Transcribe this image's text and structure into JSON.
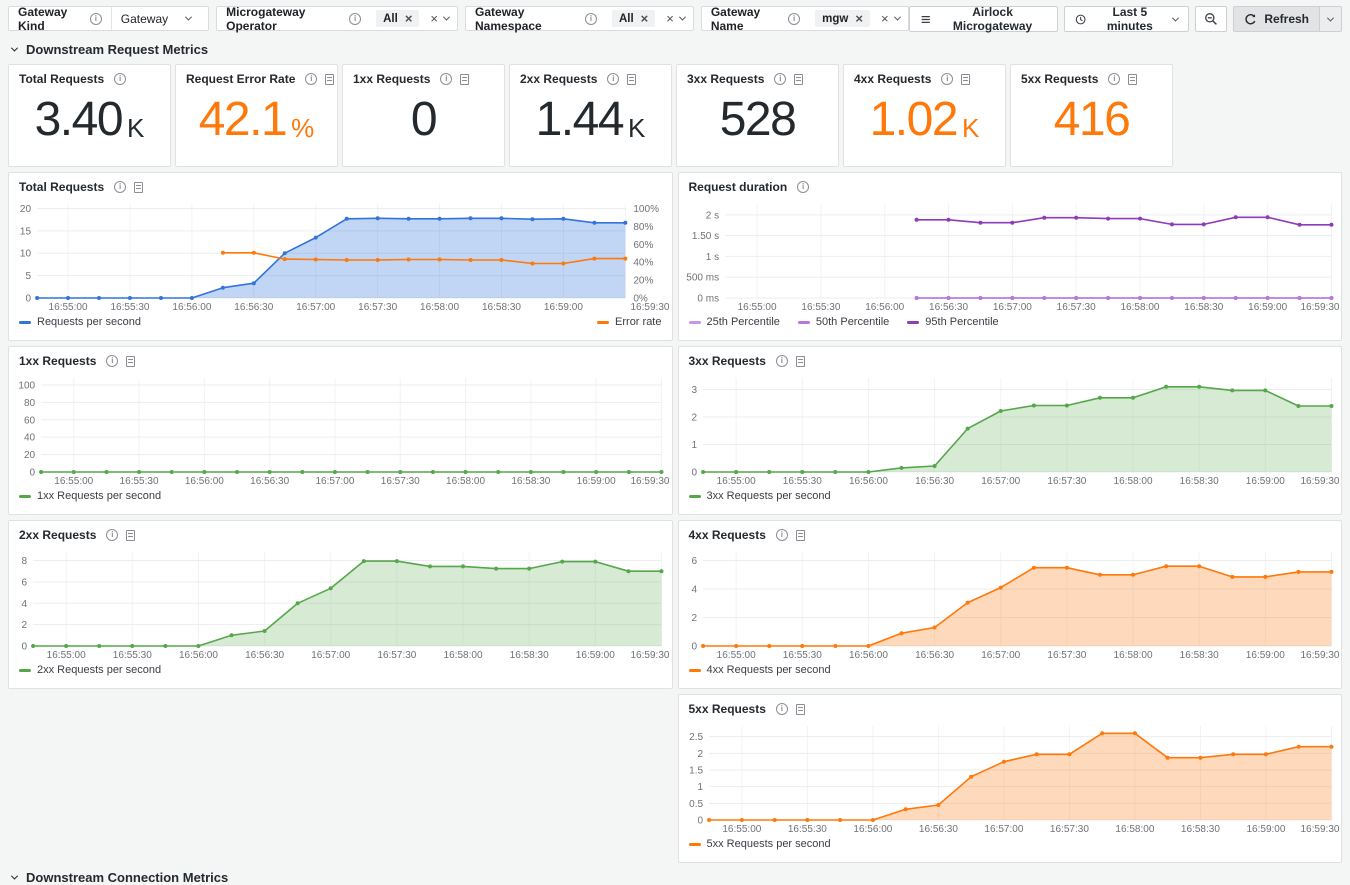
{
  "icons": {
    "close": "×"
  },
  "filters": {
    "gateway_kind": {
      "label": "Gateway Kind",
      "value": "Gateway"
    },
    "operator": {
      "label": "Microgateway Operator",
      "chip": "All"
    },
    "namespace": {
      "label": "Gateway Namespace",
      "chip": "All"
    },
    "gateway_name": {
      "label": "Gateway Name",
      "chip": "mgw"
    }
  },
  "toolbar": {
    "app_button": "Airlock Microgateway",
    "time_range": "Last 5 minutes",
    "refresh_label": "Refresh"
  },
  "section": {
    "title": "Downstream Request Metrics"
  },
  "section_next": {
    "title": "Downstream Connection Metrics"
  },
  "colors": {
    "value_dark": "#24292E",
    "value_orange": "#FF780A",
    "blue": "#3274D9",
    "green": "#56A64B",
    "orange": "#FF780A",
    "purple_25": "#CA95E5",
    "purple_50": "#B877D9",
    "purple_95": "#8F3BB8"
  },
  "stats": [
    {
      "title": "Total Requests",
      "icons": [
        "info"
      ],
      "value": "3.40",
      "suffix": "K",
      "color": "#24292E"
    },
    {
      "title": "Request Error Rate",
      "icons": [
        "info",
        "panel-links"
      ],
      "value": "42.1",
      "suffix": "%",
      "color": "#FF780A"
    },
    {
      "title": "1xx Requests",
      "icons": [
        "info",
        "panel-links"
      ],
      "value": "0",
      "suffix": "",
      "color": "#24292E"
    },
    {
      "title": "2xx Requests",
      "icons": [
        "info",
        "panel-links"
      ],
      "value": "1.44",
      "suffix": "K",
      "color": "#24292E"
    },
    {
      "title": "3xx Requests",
      "icons": [
        "info",
        "panel-links"
      ],
      "value": "528",
      "suffix": "",
      "color": "#24292E"
    },
    {
      "title": "4xx Requests",
      "icons": [
        "info",
        "panel-links"
      ],
      "value": "1.02",
      "suffix": "K",
      "color": "#FF780A"
    },
    {
      "title": "5xx Requests",
      "icons": [
        "info",
        "panel-links"
      ],
      "value": "416",
      "suffix": "",
      "color": "#FF780A"
    }
  ],
  "time_axis": [
    "16:55:00",
    "16:55:30",
    "16:56:00",
    "16:56:30",
    "16:57:00",
    "16:57:30",
    "16:58:00",
    "16:58:30",
    "16:59:00",
    "16:59:30"
  ],
  "x_start": "16:54:45",
  "x_step_seconds": 15,
  "chart_data": [
    {
      "id": "total-requests",
      "title": "Total Requests",
      "type": "area+line",
      "icons": [
        "info",
        "panel-links"
      ],
      "legend_split": true,
      "pad_l": 28,
      "y_left": {
        "labels": [
          "0",
          "5",
          "10",
          "15",
          "20"
        ],
        "tick_max": 20,
        "ymax": 21
      },
      "y_right": {
        "labels": [
          "0%",
          "20%",
          "40%",
          "60%",
          "80%",
          "100%"
        ],
        "tick_max": 100,
        "ymax": 105
      },
      "series": [
        {
          "name": "Requests per second",
          "axis": "left",
          "color": "#3274D9",
          "fill": "rgba(50,116,217,0.30)",
          "values": [
            0,
            0,
            0,
            0,
            0,
            0,
            2.3,
            3.3,
            10,
            13.5,
            17.7,
            17.8,
            17.7,
            17.7,
            17.8,
            17.8,
            17.6,
            17.7,
            16.8,
            16.8
          ]
        },
        {
          "name": "Error rate",
          "axis": "right",
          "color": "#FF780A",
          "fill": null,
          "values": [
            null,
            null,
            null,
            null,
            null,
            null,
            50.5,
            50.5,
            43.5,
            43,
            42.5,
            42.5,
            43,
            43,
            42.5,
            42.5,
            38.5,
            38.5,
            44,
            44
          ]
        }
      ]
    },
    {
      "id": "request-duration",
      "title": "Request duration",
      "type": "line",
      "icons": [
        "info"
      ],
      "pad_l": 46,
      "y_left": {
        "labels": [
          "0 ms",
          "500 ms",
          "1 s",
          "1.50 s",
          "2 s"
        ],
        "tick_max": 2,
        "ymax": 2.26
      },
      "series": [
        {
          "name": "25th Percentile",
          "axis": "left",
          "color": "#CA95E5",
          "fill": null,
          "values": [
            null,
            null,
            null,
            null,
            null,
            null,
            0,
            0,
            0,
            0,
            0,
            0,
            0,
            0,
            0,
            0,
            0,
            0,
            0,
            0
          ]
        },
        {
          "name": "50th Percentile",
          "axis": "left",
          "color": "#B877D9",
          "fill": null,
          "values": [
            null,
            null,
            null,
            null,
            null,
            null,
            0,
            0,
            0,
            0,
            0,
            0,
            0,
            0,
            0,
            0,
            0,
            0,
            0,
            0
          ]
        },
        {
          "name": "95th Percentile",
          "axis": "left",
          "color": "#8F3BB8",
          "fill": null,
          "values": [
            null,
            null,
            null,
            null,
            null,
            null,
            1.88,
            1.88,
            1.81,
            1.81,
            1.93,
            1.93,
            1.91,
            1.91,
            1.77,
            1.77,
            1.94,
            1.94,
            1.76,
            1.76
          ]
        }
      ]
    },
    {
      "id": "1xx-requests",
      "title": "1xx Requests",
      "type": "line",
      "icons": [
        "info",
        "panel-links"
      ],
      "pad_l": 32,
      "y_left": {
        "labels": [
          "0",
          "20",
          "40",
          "60",
          "80",
          "100"
        ],
        "tick_max": 100,
        "ymax": 108
      },
      "series": [
        {
          "name": "1xx Requests per second",
          "axis": "left",
          "color": "#56A64B",
          "fill": null,
          "values": [
            0,
            0,
            0,
            0,
            0,
            0,
            0,
            0,
            0,
            0,
            0,
            0,
            0,
            0,
            0,
            0,
            0,
            0,
            0,
            0
          ]
        }
      ]
    },
    {
      "id": "3xx-requests",
      "title": "3xx Requests",
      "type": "area",
      "icons": [
        "info",
        "panel-links"
      ],
      "pad_l": 24,
      "y_left": {
        "labels": [
          "0",
          "1",
          "2",
          "3"
        ],
        "tick_max": 3,
        "ymax": 3.42
      },
      "series": [
        {
          "name": "3xx Requests per second",
          "axis": "left",
          "color": "#56A64B",
          "fill": "rgba(86,166,75,0.24)",
          "values": [
            0,
            0,
            0,
            0,
            0,
            0,
            0.15,
            0.22,
            1.58,
            2.22,
            2.42,
            2.42,
            2.7,
            2.7,
            3.1,
            3.1,
            2.97,
            2.97,
            2.4,
            2.4
          ]
        }
      ]
    },
    {
      "id": "2xx-requests",
      "title": "2xx Requests",
      "type": "area",
      "icons": [
        "info",
        "panel-links"
      ],
      "pad_l": 24,
      "y_left": {
        "labels": [
          "0",
          "2",
          "4",
          "6",
          "8"
        ],
        "tick_max": 8,
        "ymax": 8.8
      },
      "series": [
        {
          "name": "2xx Requests per second",
          "axis": "left",
          "color": "#56A64B",
          "fill": "rgba(86,166,75,0.24)",
          "values": [
            0,
            0,
            0,
            0,
            0,
            0,
            1.0,
            1.4,
            4.0,
            5.4,
            7.95,
            7.95,
            7.45,
            7.45,
            7.25,
            7.25,
            7.9,
            7.9,
            7.0,
            7.0
          ]
        }
      ]
    },
    {
      "id": "4xx-requests",
      "title": "4xx Requests",
      "type": "area",
      "icons": [
        "info",
        "panel-links"
      ],
      "pad_l": 24,
      "y_left": {
        "labels": [
          "0",
          "2",
          "4",
          "6"
        ],
        "tick_max": 6,
        "ymax": 6.6
      },
      "series": [
        {
          "name": "4xx Requests per second",
          "axis": "left",
          "color": "#FF780A",
          "fill": "rgba(255,120,10,0.28)",
          "values": [
            0,
            0,
            0,
            0,
            0,
            0,
            0.9,
            1.3,
            3.05,
            4.1,
            5.5,
            5.5,
            5.0,
            5.0,
            5.6,
            5.6,
            4.85,
            4.85,
            5.2,
            5.2
          ]
        }
      ]
    },
    {
      "id": "5xx-requests",
      "title": "5xx Requests",
      "type": "area",
      "icons": [
        "info",
        "panel-links"
      ],
      "pad_l": 30,
      "spacer_before": true,
      "y_left": {
        "labels": [
          "0",
          "0.5",
          "1",
          "1.5",
          "2",
          "2.5"
        ],
        "tick_max": 2.5,
        "ymax": 2.82
      },
      "series": [
        {
          "name": "5xx Requests per second",
          "axis": "left",
          "color": "#FF780A",
          "fill": "rgba(255,120,10,0.28)",
          "values": [
            0,
            0,
            0,
            0,
            0,
            0,
            0.32,
            0.45,
            1.3,
            1.75,
            1.97,
            1.97,
            2.6,
            2.6,
            1.87,
            1.87,
            1.97,
            1.97,
            2.2,
            2.2
          ]
        }
      ]
    }
  ]
}
